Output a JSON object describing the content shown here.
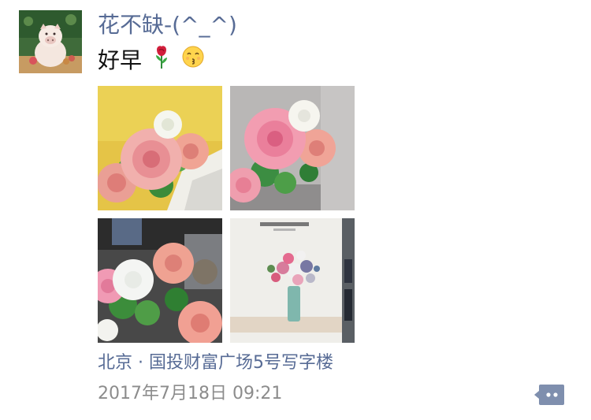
{
  "post": {
    "author_name": "花不缺-(^_^)",
    "text": "好早",
    "emojis": [
      "rose-emoji",
      "kissing-face-emoji"
    ],
    "photos": [
      {
        "name": "pink-roses-on-yellow"
      },
      {
        "name": "pink-roses-on-gray"
      },
      {
        "name": "roses-with-desk-background"
      },
      {
        "name": "flower-vase-card"
      }
    ],
    "location": "北京 · 国投财富广场5号写字楼",
    "timestamp": "2017年7月18日 09:21",
    "comment_icon": "comment-menu-icon"
  },
  "colors": {
    "link": "#576b95",
    "text": "#111111",
    "meta": "#8c8c8c",
    "comment_button": "#7f8fae"
  }
}
